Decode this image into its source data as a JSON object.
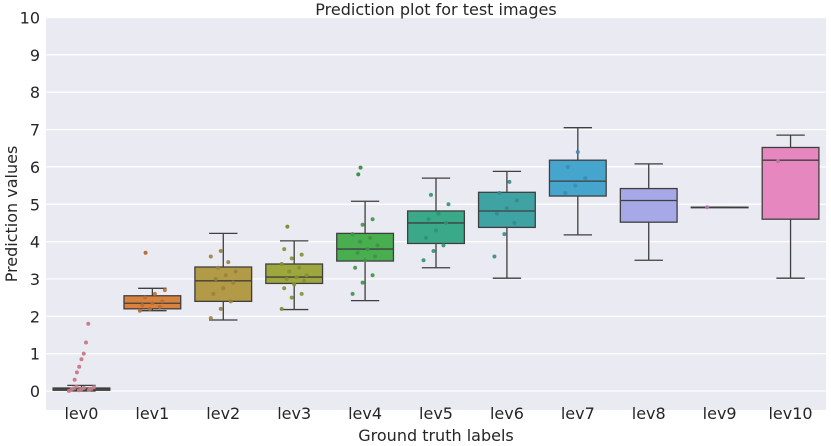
{
  "chart_data": {
    "type": "box",
    "title": "Prediction plot for test images",
    "xlabel": "Ground truth labels",
    "ylabel": "Prediction values",
    "ylim": [
      0,
      10
    ],
    "y_ticks": [
      "0",
      "1",
      "2",
      "3",
      "4",
      "5",
      "6",
      "7",
      "8",
      "9",
      "10"
    ],
    "grid": true,
    "categories": [
      "lev0",
      "lev1",
      "lev2",
      "lev3",
      "lev4",
      "lev5",
      "lev6",
      "lev7",
      "lev8",
      "lev9",
      "lev10"
    ],
    "colors": [
      "#ea96a3",
      "#d8823e",
      "#b29a47",
      "#9ea73e",
      "#49ae50",
      "#3aa98a",
      "#3fa3a4",
      "#46a5cd",
      "#a6a8e8",
      "#d98dd9",
      "#e687c0"
    ],
    "boxes": [
      {
        "whisker_low": 0.0,
        "q1": 0.02,
        "median": 0.05,
        "q3": 0.08,
        "whisker_high": 0.15,
        "outliers": [
          0.3,
          0.5,
          0.65,
          0.85,
          1.0,
          1.3,
          1.8
        ]
      },
      {
        "whisker_low": 2.15,
        "q1": 2.2,
        "median": 2.35,
        "q3": 2.55,
        "whisker_high": 2.75,
        "outliers": [
          3.7
        ]
      },
      {
        "whisker_low": 1.9,
        "q1": 2.4,
        "median": 2.95,
        "q3": 3.32,
        "whisker_high": 4.22,
        "outliers": []
      },
      {
        "whisker_low": 2.18,
        "q1": 2.88,
        "median": 3.05,
        "q3": 3.4,
        "whisker_high": 4.02,
        "outliers": [
          4.4
        ]
      },
      {
        "whisker_low": 2.42,
        "q1": 3.48,
        "median": 3.8,
        "q3": 4.22,
        "whisker_high": 5.08,
        "outliers": [
          5.8,
          5.98
        ]
      },
      {
        "whisker_low": 3.3,
        "q1": 3.95,
        "median": 4.5,
        "q3": 4.82,
        "whisker_high": 5.7,
        "outliers": []
      },
      {
        "whisker_low": 3.02,
        "q1": 4.38,
        "median": 4.82,
        "q3": 5.32,
        "whisker_high": 5.88,
        "outliers": []
      },
      {
        "whisker_low": 4.18,
        "q1": 5.22,
        "median": 5.62,
        "q3": 6.18,
        "whisker_high": 7.05,
        "outliers": []
      },
      {
        "whisker_low": 3.5,
        "q1": 4.52,
        "median": 5.1,
        "q3": 5.42,
        "whisker_high": 6.08,
        "outliers": []
      },
      {
        "whisker_low": 4.92,
        "q1": 4.92,
        "median": 4.92,
        "q3": 4.92,
        "whisker_high": 4.92,
        "outliers": []
      },
      {
        "whisker_low": 3.02,
        "q1": 4.6,
        "median": 6.18,
        "q3": 6.52,
        "whisker_high": 6.85,
        "outliers": []
      }
    ],
    "points": [
      [
        0.0,
        0.02,
        0.03,
        0.04,
        0.05,
        0.06,
        0.07,
        0.08,
        0.1,
        0.12
      ],
      [
        2.15,
        2.2,
        2.25,
        2.3,
        2.35,
        2.4,
        2.5,
        2.6,
        2.7
      ],
      [
        1.95,
        2.2,
        2.4,
        2.6,
        2.75,
        2.9,
        3.0,
        3.1,
        3.2,
        3.3,
        3.45,
        3.6,
        3.75
      ],
      [
        2.2,
        2.5,
        2.6,
        2.75,
        2.85,
        2.95,
        3.0,
        3.05,
        3.1,
        3.2,
        3.3,
        3.4,
        3.55,
        3.65,
        3.8
      ],
      [
        2.6,
        2.9,
        3.1,
        3.3,
        3.5,
        3.6,
        3.7,
        3.8,
        3.9,
        4.0,
        4.1,
        4.2,
        4.45,
        4.6
      ],
      [
        3.5,
        3.75,
        3.9,
        4.1,
        4.3,
        4.5,
        4.6,
        4.75,
        5.0,
        5.25
      ],
      [
        3.6,
        4.2,
        4.5,
        4.75,
        4.9,
        5.1,
        5.3,
        5.6
      ],
      [
        5.3,
        5.5,
        5.7,
        6.0,
        6.4
      ],
      [],
      [
        4.92
      ],
      [
        6.15
      ]
    ]
  }
}
